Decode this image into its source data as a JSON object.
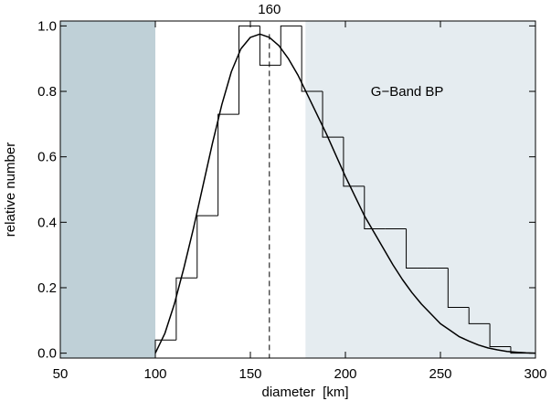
{
  "chart_data": {
    "type": "bar",
    "title": "",
    "xlabel": "diameter  [km]",
    "ylabel": "relative number",
    "xlim": [
      50,
      300
    ],
    "ylim": [
      -0.015,
      1.015
    ],
    "xticks": [
      {
        "value": 50,
        "label": "50"
      },
      {
        "value": 100,
        "label": "100"
      },
      {
        "value": 150,
        "label": "150"
      },
      {
        "value": 200,
        "label": "200"
      },
      {
        "value": 250,
        "label": "250"
      },
      {
        "value": 300,
        "label": "300"
      }
    ],
    "yticks": [
      {
        "value": 0.0,
        "label": "0.0"
      },
      {
        "value": 0.2,
        "label": "0.2"
      },
      {
        "value": 0.4,
        "label": "0.4"
      },
      {
        "value": 0.6,
        "label": "0.6"
      },
      {
        "value": 0.8,
        "label": "0.8"
      },
      {
        "value": 1.0,
        "label": "1.0"
      }
    ],
    "histogram": {
      "style": "step",
      "bins": [
        {
          "x0": 100,
          "x1": 111,
          "value": 0.04
        },
        {
          "x0": 111,
          "x1": 122,
          "value": 0.23
        },
        {
          "x0": 122,
          "x1": 133,
          "value": 0.42
        },
        {
          "x0": 133,
          "x1": 144,
          "value": 0.73
        },
        {
          "x0": 144,
          "x1": 155,
          "value": 1.0
        },
        {
          "x0": 155,
          "x1": 166,
          "value": 0.88
        },
        {
          "x0": 166,
          "x1": 177,
          "value": 1.0
        },
        {
          "x0": 177,
          "x1": 188,
          "value": 0.8
        },
        {
          "x0": 188,
          "x1": 199,
          "value": 0.66
        },
        {
          "x0": 199,
          "x1": 210,
          "value": 0.51
        },
        {
          "x0": 210,
          "x1": 221,
          "value": 0.38
        },
        {
          "x0": 221,
          "x1": 232,
          "value": 0.38
        },
        {
          "x0": 232,
          "x1": 243,
          "value": 0.26
        },
        {
          "x0": 243,
          "x1": 254,
          "value": 0.26
        },
        {
          "x0": 254,
          "x1": 265,
          "value": 0.14
        },
        {
          "x0": 265,
          "x1": 276,
          "value": 0.09
        },
        {
          "x0": 276,
          "x1": 287,
          "value": 0.02
        },
        {
          "x0": 287,
          "x1": 298,
          "value": 0.0
        }
      ]
    },
    "fit_curve": {
      "x": [
        100,
        105,
        110,
        115,
        120,
        125,
        130,
        135,
        140,
        145,
        150,
        155,
        160,
        165,
        170,
        175,
        180,
        185,
        190,
        195,
        200,
        205,
        210,
        215,
        220,
        225,
        230,
        235,
        240,
        245,
        250,
        255,
        260,
        265,
        270,
        275,
        280,
        285,
        290,
        295,
        300
      ],
      "y": [
        0.0,
        0.06,
        0.15,
        0.26,
        0.38,
        0.51,
        0.64,
        0.76,
        0.86,
        0.93,
        0.965,
        0.975,
        0.965,
        0.94,
        0.9,
        0.85,
        0.79,
        0.73,
        0.67,
        0.605,
        0.54,
        0.48,
        0.42,
        0.37,
        0.32,
        0.27,
        0.225,
        0.185,
        0.15,
        0.12,
        0.09,
        0.07,
        0.05,
        0.037,
        0.025,
        0.016,
        0.01,
        0.005,
        0.003,
        0.001,
        0.0
      ]
    },
    "peak_marker": {
      "x": 160,
      "label": "160",
      "style": "dashed"
    },
    "shaded_regions": [
      {
        "x0": 50,
        "x1": 100,
        "color": "#bfd0d7"
      },
      {
        "x0": 179,
        "x1": 300,
        "color": "#e5ecf0"
      }
    ],
    "annotation": {
      "text": "G−Band BP",
      "x": 235,
      "y": 0.8
    },
    "grid": false,
    "legend": "none"
  }
}
